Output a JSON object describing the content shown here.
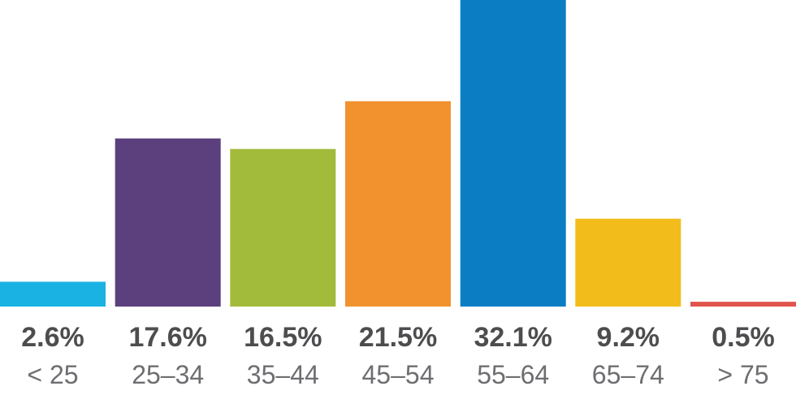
{
  "chart_data": {
    "type": "bar",
    "title": "",
    "xlabel": "",
    "ylabel": "",
    "categories": [
      "< 25",
      "25–34",
      "35–44",
      "45–54",
      "55–64",
      "65–74",
      "> 75"
    ],
    "values": [
      2.6,
      17.6,
      16.5,
      21.5,
      32.1,
      9.2,
      0.5
    ],
    "value_labels": [
      "2.6%",
      "17.6%",
      "16.5%",
      "21.5%",
      "32.1%",
      "9.2%",
      "0.5%"
    ],
    "unit": "%",
    "colors": [
      "#1ab2e3",
      "#5c407e",
      "#a3bb3a",
      "#f2922f",
      "#0b7ec3",
      "#f2bd1b",
      "#e2534e"
    ],
    "ylim": [
      0,
      32.1
    ],
    "grid": false,
    "legend": "none"
  }
}
